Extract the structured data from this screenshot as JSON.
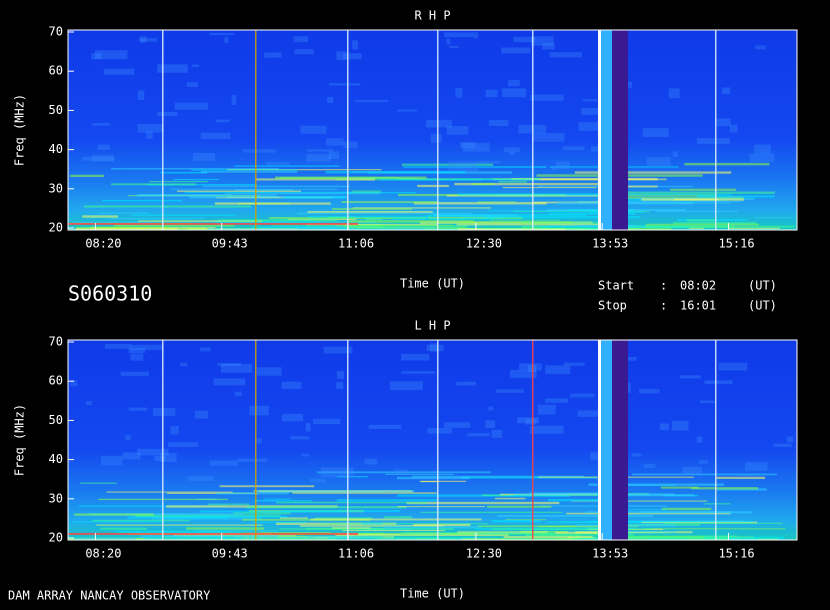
{
  "page_title": "S060310",
  "footer": "DAM ARRAY  NANCAY OBSERVATORY",
  "info": {
    "start_label": "Start",
    "start_sep": ":",
    "start": "08:02",
    "start_unit": "(UT)",
    "stop_label": "Stop",
    "stop_sep": ":",
    "stop": "16:01",
    "stop_unit": "(UT)"
  },
  "chart_data": [
    {
      "type": "spectrogram",
      "title": "R H P",
      "xlabel": "Time (UT)",
      "ylabel": "Freq (MHz)",
      "xlim": [
        482,
        961
      ],
      "ylim": [
        20,
        70
      ],
      "yticks": [
        20,
        30,
        40,
        50,
        60,
        70
      ],
      "xticks": [
        {
          "value": 500,
          "label": "08:20"
        },
        {
          "value": 583,
          "label": "09:43"
        },
        {
          "value": 666,
          "label": "11:06"
        },
        {
          "value": 750,
          "label": "12:30"
        },
        {
          "value": 833,
          "label": "13:53"
        },
        {
          "value": 916,
          "label": "15:16"
        }
      ]
    },
    {
      "type": "spectrogram",
      "title": "L H P",
      "xlabel": "Time (UT)",
      "ylabel": "Freq (MHz)",
      "xlim": [
        482,
        961
      ],
      "ylim": [
        20,
        70
      ],
      "yticks": [
        20,
        30,
        40,
        50,
        60,
        70
      ],
      "xticks": [
        {
          "value": 500,
          "label": "08:20"
        },
        {
          "value": 583,
          "label": "09:43"
        },
        {
          "value": 666,
          "label": "11:06"
        },
        {
          "value": 750,
          "label": "12:30"
        },
        {
          "value": 833,
          "label": "13:53"
        },
        {
          "value": 916,
          "label": "15:16"
        }
      ]
    }
  ]
}
